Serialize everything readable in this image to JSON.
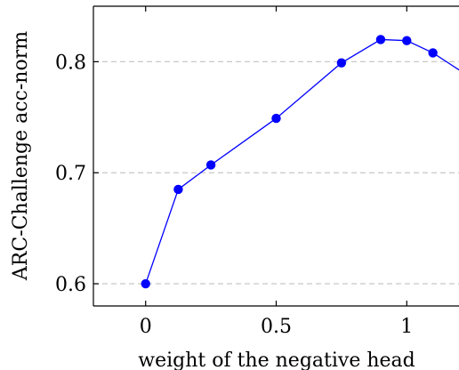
{
  "chart_data": {
    "type": "line",
    "title": "",
    "xlabel": "weight of the negative head",
    "ylabel": "ARC-Challenge acc-norm",
    "xlim": [
      -0.2,
      1.2
    ],
    "ylim": [
      0.58,
      0.85
    ],
    "x_ticks": [
      0,
      0.5,
      1
    ],
    "x_tick_labels": [
      "0",
      "0.5",
      "1"
    ],
    "y_ticks": [
      0.6,
      0.7,
      0.8
    ],
    "y_tick_labels": [
      "0.6",
      "0.7",
      "0.8"
    ],
    "grid": "horizontal dashed at y ticks",
    "legend": "none",
    "series": [
      {
        "color": "#0000ff",
        "marker": "circle",
        "x": [
          0,
          0.125,
          0.25,
          0.5,
          0.75,
          0.9,
          1.0,
          1.1,
          1.25
        ],
        "y": [
          0.6,
          0.685,
          0.707,
          0.749,
          0.799,
          0.82,
          0.819,
          0.808,
          0.785
        ]
      }
    ]
  }
}
